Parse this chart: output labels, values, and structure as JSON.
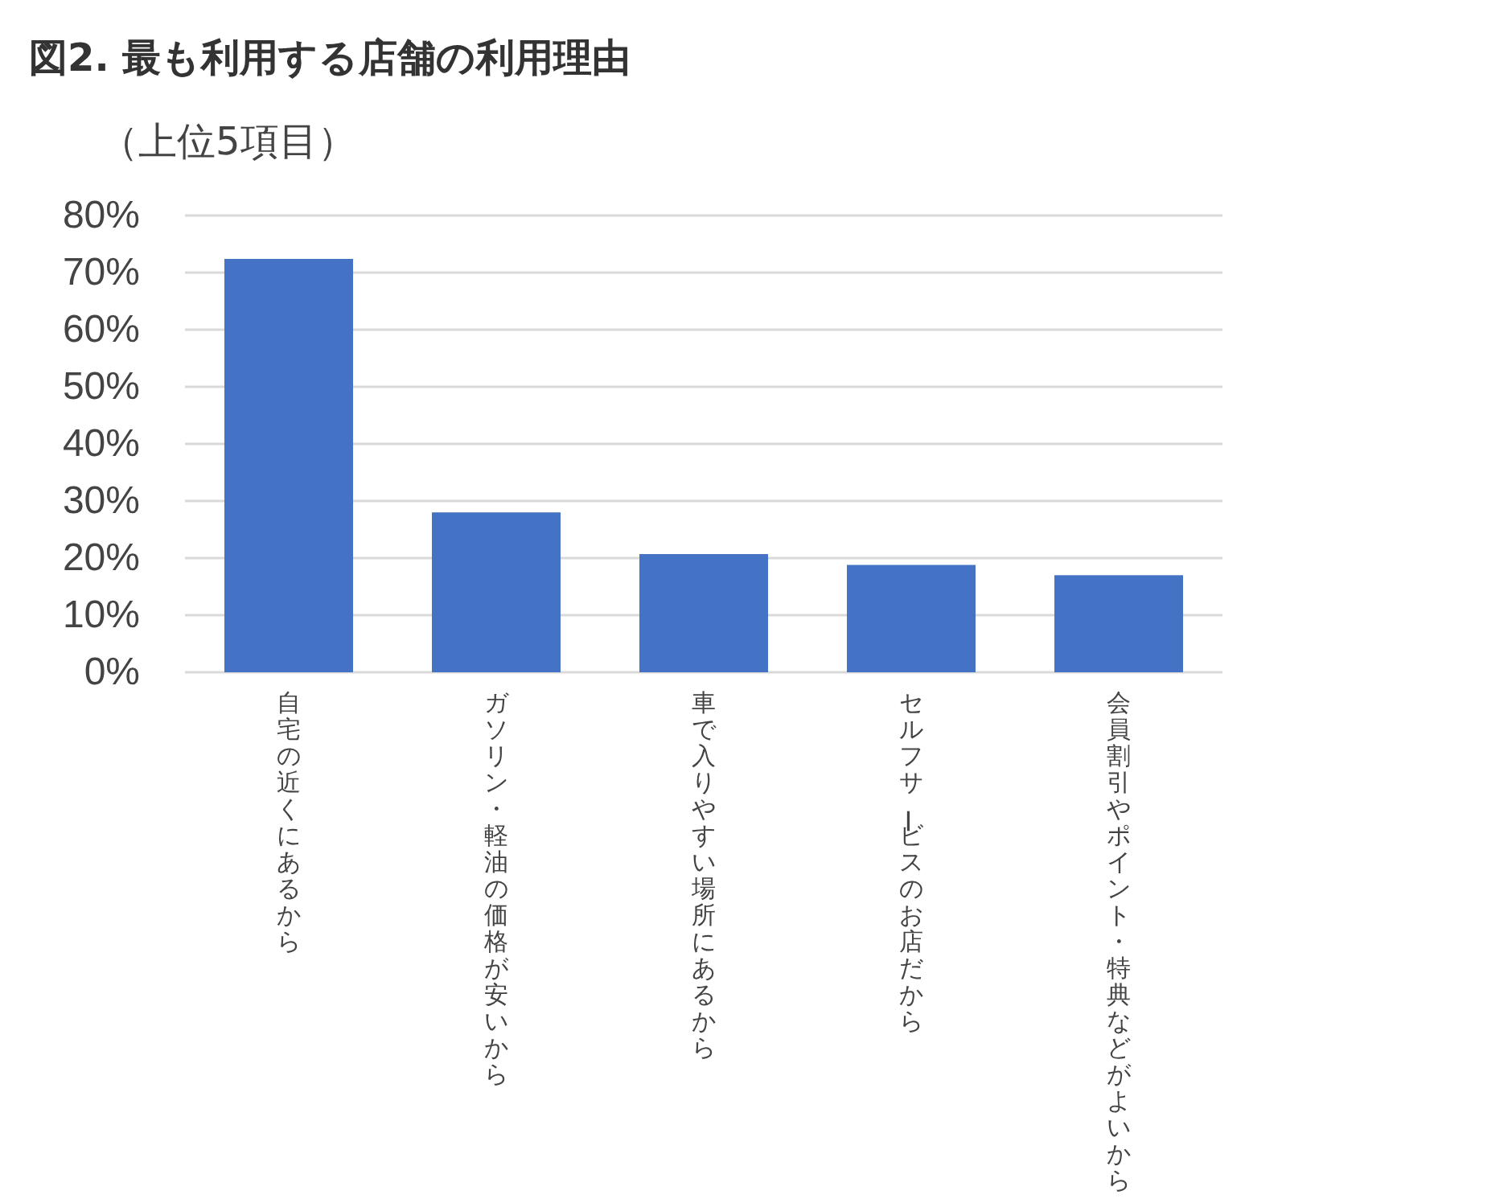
{
  "chart_data": {
    "type": "bar",
    "title": "図2. 最も利用する店舗の利用理由",
    "subtitle": "（上位5項目）",
    "categories": [
      "自宅の近くにあるから",
      "ガソリン・軽油の価格が安いから",
      "車で入りやすい場所にあるから",
      "セルフサービスのお店だから",
      "会員割引やポイント・特典などがよいから"
    ],
    "values": [
      72.4,
      28.0,
      20.7,
      18.8,
      17.0
    ],
    "color": "#4472c4",
    "ylim": [
      0,
      80
    ],
    "yticks": [
      {
        "value": 0,
        "label": "0%"
      },
      {
        "value": 10,
        "label": "10%"
      },
      {
        "value": 20,
        "label": "20%"
      },
      {
        "value": 30,
        "label": "30%"
      },
      {
        "value": 40,
        "label": "40%"
      },
      {
        "value": 50,
        "label": "50%"
      },
      {
        "value": 60,
        "label": "60%"
      },
      {
        "value": 70,
        "label": "70%"
      },
      {
        "value": 80,
        "label": "80%"
      }
    ],
    "grid": "y",
    "legend": false
  }
}
